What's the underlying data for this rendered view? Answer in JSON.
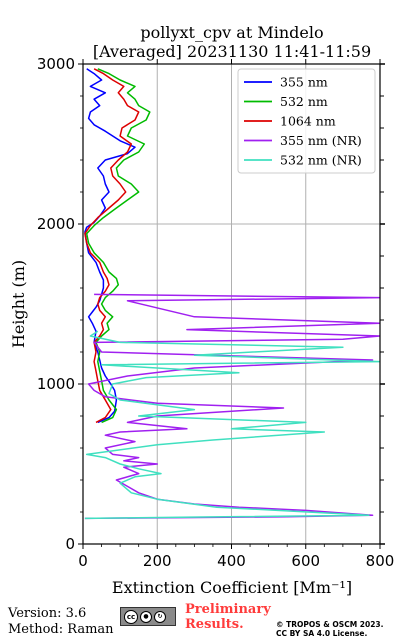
{
  "chart_data": {
    "type": "line",
    "title": [
      "pollyxt_cpv at Mindelo",
      "[Averaged] 20231130 11:41-11:59"
    ],
    "xlabel": "Extinction Coefficient [Mm⁻¹]",
    "ylabel": "Height (m)",
    "xlim": [
      0,
      800
    ],
    "ylim": [
      0,
      3000
    ],
    "xticks": [
      "0",
      "200",
      "400",
      "600",
      "800"
    ],
    "yticks": [
      "0",
      "1000",
      "2000",
      "3000"
    ],
    "grid": true,
    "legend_position": "top-right",
    "series": [
      {
        "name": "355 nm",
        "color": "#0000ff",
        "points": [
          [
            40,
            760
          ],
          [
            70,
            790
          ],
          [
            85,
            830
          ],
          [
            90,
            900
          ],
          [
            85,
            960
          ],
          [
            75,
            1000
          ],
          [
            60,
            1050
          ],
          [
            50,
            1100
          ],
          [
            45,
            1150
          ],
          [
            40,
            1200
          ],
          [
            30,
            1260
          ],
          [
            35,
            1330
          ],
          [
            25,
            1380
          ],
          [
            15,
            1420
          ],
          [
            25,
            1450
          ],
          [
            35,
            1480
          ],
          [
            45,
            1520
          ],
          [
            50,
            1560
          ],
          [
            55,
            1600
          ],
          [
            55,
            1650
          ],
          [
            45,
            1700
          ],
          [
            35,
            1760
          ],
          [
            15,
            1820
          ],
          [
            10,
            1880
          ],
          [
            5,
            1950
          ],
          [
            10,
            1980
          ],
          [
            30,
            2010
          ],
          [
            45,
            2050
          ],
          [
            60,
            2100
          ],
          [
            50,
            2150
          ],
          [
            70,
            2200
          ],
          [
            60,
            2250
          ],
          [
            55,
            2300
          ],
          [
            40,
            2350
          ],
          [
            60,
            2400
          ],
          [
            120,
            2440
          ],
          [
            140,
            2480
          ],
          [
            100,
            2520
          ],
          [
            60,
            2580
          ],
          [
            30,
            2620
          ],
          [
            15,
            2660
          ],
          [
            20,
            2700
          ],
          [
            45,
            2740
          ],
          [
            30,
            2780
          ],
          [
            60,
            2820
          ],
          [
            20,
            2860
          ],
          [
            50,
            2900
          ],
          [
            30,
            2940
          ],
          [
            10,
            2970
          ]
        ]
      },
      {
        "name": "532 nm",
        "color": "#00bb00",
        "points": [
          [
            50,
            760
          ],
          [
            80,
            790
          ],
          [
            90,
            840
          ],
          [
            70,
            900
          ],
          [
            55,
            960
          ],
          [
            50,
            1020
          ],
          [
            45,
            1080
          ],
          [
            40,
            1140
          ],
          [
            45,
            1200
          ],
          [
            35,
            1260
          ],
          [
            50,
            1300
          ],
          [
            70,
            1340
          ],
          [
            65,
            1380
          ],
          [
            80,
            1420
          ],
          [
            60,
            1460
          ],
          [
            50,
            1500
          ],
          [
            60,
            1540
          ],
          [
            80,
            1580
          ],
          [
            95,
            1620
          ],
          [
            90,
            1660
          ],
          [
            70,
            1700
          ],
          [
            55,
            1760
          ],
          [
            30,
            1820
          ],
          [
            15,
            1880
          ],
          [
            10,
            1940
          ],
          [
            30,
            1990
          ],
          [
            55,
            2040
          ],
          [
            90,
            2100
          ],
          [
            120,
            2150
          ],
          [
            150,
            2200
          ],
          [
            130,
            2250
          ],
          [
            95,
            2300
          ],
          [
            90,
            2350
          ],
          [
            110,
            2400
          ],
          [
            150,
            2450
          ],
          [
            165,
            2500
          ],
          [
            120,
            2550
          ],
          [
            130,
            2600
          ],
          [
            170,
            2650
          ],
          [
            180,
            2700
          ],
          [
            150,
            2740
          ],
          [
            140,
            2780
          ],
          [
            120,
            2820
          ],
          [
            140,
            2860
          ],
          [
            100,
            2900
          ],
          [
            70,
            2940
          ],
          [
            40,
            2970
          ]
        ]
      },
      {
        "name": "1064 nm",
        "color": "#dd0000",
        "points": [
          [
            35,
            760
          ],
          [
            60,
            790
          ],
          [
            75,
            840
          ],
          [
            60,
            900
          ],
          [
            45,
            960
          ],
          [
            40,
            1020
          ],
          [
            35,
            1080
          ],
          [
            30,
            1140
          ],
          [
            35,
            1200
          ],
          [
            30,
            1260
          ],
          [
            45,
            1300
          ],
          [
            55,
            1340
          ],
          [
            50,
            1380
          ],
          [
            60,
            1420
          ],
          [
            45,
            1460
          ],
          [
            40,
            1500
          ],
          [
            45,
            1540
          ],
          [
            60,
            1580
          ],
          [
            70,
            1620
          ],
          [
            65,
            1660
          ],
          [
            55,
            1700
          ],
          [
            45,
            1760
          ],
          [
            20,
            1820
          ],
          [
            10,
            1880
          ],
          [
            5,
            1940
          ],
          [
            20,
            1990
          ],
          [
            40,
            2040
          ],
          [
            70,
            2100
          ],
          [
            95,
            2150
          ],
          [
            115,
            2200
          ],
          [
            100,
            2250
          ],
          [
            80,
            2300
          ],
          [
            75,
            2350
          ],
          [
            95,
            2400
          ],
          [
            120,
            2450
          ],
          [
            130,
            2500
          ],
          [
            100,
            2550
          ],
          [
            105,
            2600
          ],
          [
            140,
            2650
          ],
          [
            150,
            2700
          ],
          [
            120,
            2740
          ],
          [
            110,
            2780
          ],
          [
            95,
            2820
          ],
          [
            110,
            2860
          ],
          [
            80,
            2900
          ],
          [
            55,
            2940
          ],
          [
            30,
            2970
          ]
        ]
      },
      {
        "name": "355 nm (NR)",
        "color": "#a020f0",
        "points": [
          [
            5,
            160
          ],
          [
            550,
            170
          ],
          [
            780,
            180
          ],
          [
            600,
            210
          ],
          [
            420,
            230
          ],
          [
            300,
            250
          ],
          [
            200,
            280
          ],
          [
            150,
            320
          ],
          [
            120,
            360
          ],
          [
            90,
            400
          ],
          [
            150,
            440
          ],
          [
            110,
            480
          ],
          [
            200,
            500
          ],
          [
            110,
            520
          ],
          [
            150,
            540
          ],
          [
            80,
            560
          ],
          [
            60,
            600
          ],
          [
            140,
            640
          ],
          [
            60,
            680
          ],
          [
            100,
            700
          ],
          [
            280,
            720
          ],
          [
            120,
            760
          ],
          [
            200,
            800
          ],
          [
            540,
            850
          ],
          [
            200,
            880
          ],
          [
            60,
            920
          ],
          [
            30,
            960
          ],
          [
            15,
            1000
          ],
          [
            120,
            1050
          ],
          [
            300,
            1100
          ],
          [
            780,
            1150
          ],
          [
            50,
            1200
          ],
          [
            30,
            1260
          ],
          [
            700,
            1280
          ],
          [
            800,
            1300
          ],
          [
            280,
            1340
          ],
          [
            800,
            1380
          ],
          [
            300,
            1420
          ],
          [
            120,
            1520
          ],
          [
            800,
            1540
          ],
          [
            30,
            1560
          ]
        ]
      },
      {
        "name": "532 nm (NR)",
        "color": "#40e0c0",
        "points": [
          [
            5,
            160
          ],
          [
            380,
            170
          ],
          [
            770,
            180
          ],
          [
            360,
            230
          ],
          [
            200,
            280
          ],
          [
            130,
            320
          ],
          [
            100,
            380
          ],
          [
            140,
            420
          ],
          [
            210,
            440
          ],
          [
            150,
            470
          ],
          [
            100,
            500
          ],
          [
            60,
            540
          ],
          [
            10,
            560
          ],
          [
            200,
            620
          ],
          [
            350,
            650
          ],
          [
            650,
            700
          ],
          [
            400,
            720
          ],
          [
            600,
            760
          ],
          [
            150,
            800
          ],
          [
            300,
            840
          ],
          [
            100,
            900
          ],
          [
            70,
            940
          ],
          [
            80,
            1000
          ],
          [
            170,
            1040
          ],
          [
            420,
            1070
          ],
          [
            50,
            1120
          ],
          [
            800,
            1140
          ],
          [
            300,
            1180
          ],
          [
            700,
            1230
          ],
          [
            100,
            1260
          ],
          [
            20,
            1300
          ],
          [
            40,
            1330
          ]
        ]
      }
    ]
  },
  "footer": {
    "version": "Version: 3.6",
    "method": "Method: Raman",
    "prelim_line1": "Preliminary",
    "prelim_line2": "Results.",
    "copyright_line1": "© TROPOS & OSCM 2023.",
    "copyright_line2": "CC BY SA 4.0 License.",
    "license_badge_label": "cc",
    "license_badge_icons": [
      "cc-icon",
      "by-icon",
      "sa-icon"
    ]
  }
}
